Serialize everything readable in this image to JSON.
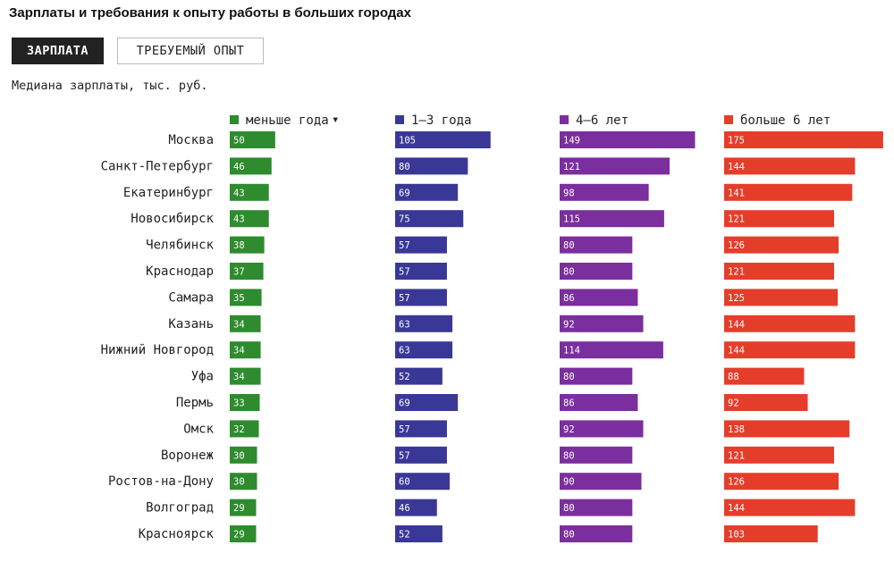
{
  "title": "Зарплаты и требования к опыту работы в больших городах",
  "tabs": [
    {
      "label": "ЗАРПЛАТА",
      "active": true
    },
    {
      "label": "ТРЕБУЕМЫЙ ОПЫТ",
      "active": false
    }
  ],
  "subtitle": "Медиана зарплаты, тыс. руб.",
  "sort_indicator": "▾",
  "chart_data": {
    "type": "bar",
    "orientation": "horizontal",
    "sorted_by": "меньше года",
    "sort_order": "descending",
    "categories": [
      "Москва",
      "Санкт-Петербург",
      "Екатеринбург",
      "Новосибирск",
      "Челябинск",
      "Краснодар",
      "Самара",
      "Казань",
      "Нижний Новгород",
      "Уфа",
      "Пермь",
      "Омск",
      "Воронеж",
      "Ростов-на-Дону",
      "Волгоград",
      "Красноярск"
    ],
    "series": [
      {
        "name": "меньше года",
        "color": "#2e8b2e",
        "values": [
          50,
          46,
          43,
          43,
          38,
          37,
          35,
          34,
          34,
          34,
          33,
          32,
          30,
          30,
          29,
          29
        ]
      },
      {
        "name": "1–3 года",
        "color": "#3a3896",
        "values": [
          105,
          80,
          69,
          75,
          57,
          57,
          57,
          63,
          63,
          52,
          69,
          57,
          57,
          60,
          46,
          52
        ]
      },
      {
        "name": "4–6 лет",
        "color": "#7b2e9e",
        "values": [
          149,
          121,
          98,
          115,
          80,
          80,
          86,
          92,
          114,
          80,
          86,
          92,
          80,
          90,
          80,
          80
        ]
      },
      {
        "name": "больше 6 лет",
        "color": "#e43e2b",
        "values": [
          175,
          144,
          141,
          121,
          126,
          121,
          125,
          144,
          144,
          88,
          92,
          138,
          121,
          126,
          144,
          103
        ]
      }
    ],
    "value_labels": true
  }
}
